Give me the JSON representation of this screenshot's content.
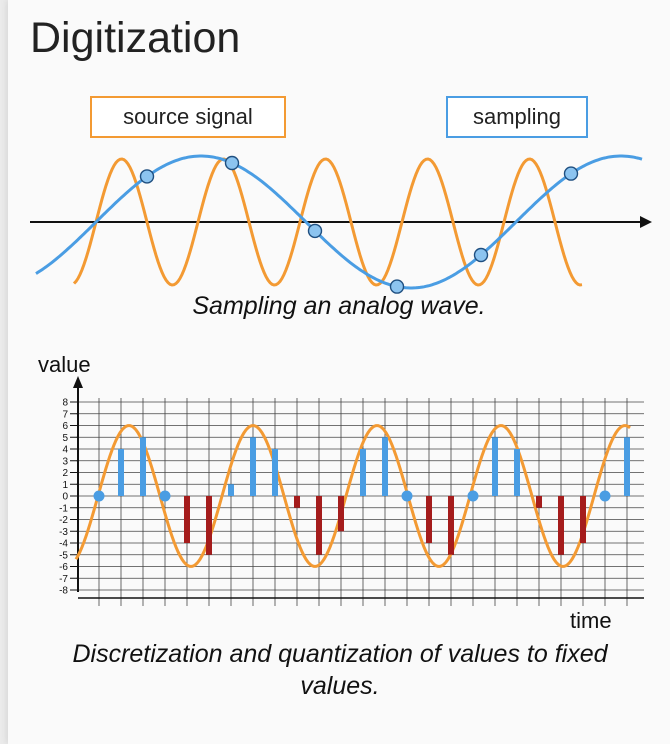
{
  "title": "Digitization",
  "top_diagram": {
    "legend_source": "source signal",
    "legend_sampling": "sampling",
    "caption": "Sampling an analog wave.",
    "colors": {
      "source": "#f39a33",
      "sampling": "#4a9de3",
      "axis": "#111111"
    }
  },
  "chart_data": {
    "type": "bar",
    "xlabel": "time",
    "ylabel": "value",
    "yticks": [
      8,
      7,
      6,
      5,
      4,
      3,
      2,
      1,
      0,
      -1,
      -2,
      -3,
      -4,
      -5,
      -6,
      -7,
      -8
    ],
    "ylim": [
      -8,
      8
    ],
    "grid": true,
    "sample_values": [
      0,
      4,
      5,
      0,
      -4,
      -5,
      1,
      5,
      4,
      -1,
      -5,
      -3,
      4,
      5,
      0,
      -4,
      -5,
      0,
      5,
      4,
      -1,
      -5,
      -4,
      0,
      5
    ],
    "colors": {
      "positive": "#4a9de3",
      "negative": "#a51c1c",
      "curve": "#f39a33",
      "zero_point": "#4a9de3"
    }
  },
  "bottom_caption": "Discretization and quantization of values to fixed values."
}
